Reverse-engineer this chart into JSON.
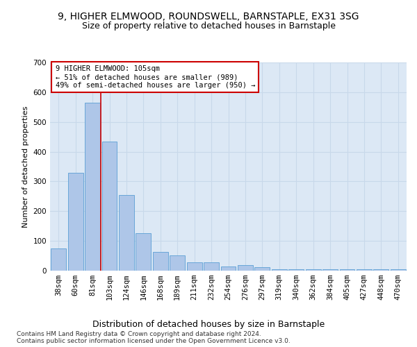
{
  "title_line1": "9, HIGHER ELMWOOD, ROUNDSWELL, BARNSTAPLE, EX31 3SG",
  "title_line2": "Size of property relative to detached houses in Barnstaple",
  "xlabel": "Distribution of detached houses by size in Barnstaple",
  "ylabel": "Number of detached properties",
  "categories": [
    "38sqm",
    "60sqm",
    "81sqm",
    "103sqm",
    "124sqm",
    "146sqm",
    "168sqm",
    "189sqm",
    "211sqm",
    "232sqm",
    "254sqm",
    "276sqm",
    "297sqm",
    "319sqm",
    "340sqm",
    "362sqm",
    "384sqm",
    "405sqm",
    "427sqm",
    "448sqm",
    "470sqm"
  ],
  "values": [
    75,
    330,
    565,
    435,
    255,
    125,
    63,
    52,
    28,
    28,
    15,
    18,
    12,
    5,
    5,
    4,
    5,
    4,
    5,
    4,
    5
  ],
  "bar_color": "#aec6e8",
  "bar_edge_color": "#5a9fd4",
  "grid_color": "#c8d8ea",
  "background_color": "#dce8f5",
  "annotation_text": "9 HIGHER ELMWOOD: 105sqm\n← 51% of detached houses are smaller (989)\n49% of semi-detached houses are larger (950) →",
  "annotation_box_color": "#ffffff",
  "annotation_box_edge": "#cc0000",
  "red_line_x": 2.5,
  "ylim": [
    0,
    700
  ],
  "yticks": [
    0,
    100,
    200,
    300,
    400,
    500,
    600,
    700
  ],
  "footer_text": "Contains HM Land Registry data © Crown copyright and database right 2024.\nContains public sector information licensed under the Open Government Licence v3.0.",
  "title_fontsize": 10,
  "subtitle_fontsize": 9,
  "xlabel_fontsize": 9,
  "ylabel_fontsize": 8,
  "tick_fontsize": 7.5,
  "annotation_fontsize": 7.5,
  "footer_fontsize": 6.5
}
